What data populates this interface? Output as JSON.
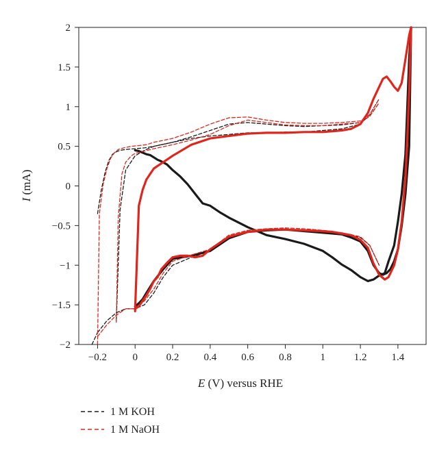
{
  "chart_data": {
    "type": "line",
    "xlabel_italic": "E",
    "xlabel_rest": " (V) versus RHE",
    "ylabel_italic": "I",
    "ylabel_rest": " (mA)",
    "xlim": [
      -0.3,
      1.55
    ],
    "ylim": [
      -2,
      2
    ],
    "xticks": [
      -0.2,
      0,
      0.2,
      0.4,
      0.6,
      0.8,
      1,
      1.2,
      1.4
    ],
    "xtick_labels": [
      "−0.2",
      "0",
      "0.2",
      "0.4",
      "0.6",
      "0.8",
      "1",
      "1.2",
      "1.4"
    ],
    "yticks": [
      -2,
      -1.5,
      -1,
      -0.5,
      0,
      0.5,
      1,
      1.5,
      2
    ],
    "ytick_labels": [
      "−2",
      "−1.5",
      "−1",
      "−0.5",
      "0",
      "0.5",
      "1",
      "1.5",
      "2"
    ],
    "grid": false,
    "legend_position": "bottom-left, below plot",
    "series": [
      {
        "name": "1 M KOH",
        "color": "#1a1a1a",
        "style": "dashed",
        "curves": [
          {
            "weight": "thick",
            "x": [
              0.0,
              0.02,
              0.04,
              0.06,
              0.08,
              0.1,
              0.12,
              0.14,
              0.17,
              0.2,
              0.24,
              0.28,
              0.32,
              0.36,
              0.4,
              0.45,
              0.5,
              0.6,
              0.7,
              0.8,
              0.9,
              1.0,
              1.05,
              1.1,
              1.15,
              1.2,
              1.24,
              1.27,
              1.3,
              1.33,
              1.35,
              1.38,
              1.4,
              1.42,
              1.44,
              1.45,
              1.46,
              1.47
            ],
            "y": [
              0.45,
              0.44,
              0.42,
              0.4,
              0.39,
              0.36,
              0.33,
              0.31,
              0.27,
              0.2,
              0.12,
              0.02,
              -0.1,
              -0.22,
              -0.25,
              -0.33,
              -0.4,
              -0.52,
              -0.62,
              -0.67,
              -0.73,
              -0.82,
              -0.9,
              -0.99,
              -1.06,
              -1.15,
              -1.2,
              -1.18,
              -1.13,
              -1.1,
              -0.95,
              -0.75,
              -0.45,
              -0.1,
              0.4,
              1.0,
              1.6,
              2.0
            ]
          },
          {
            "weight": "thick",
            "x": [
              0.0,
              0.02,
              0.04,
              0.06,
              0.1,
              0.15,
              0.2,
              0.3,
              0.4,
              0.5,
              0.6,
              0.7,
              0.8,
              0.9,
              1.0,
              1.1,
              1.15,
              1.2,
              1.24,
              1.27,
              1.3,
              1.32,
              1.34,
              1.36,
              1.38,
              1.4,
              1.42,
              1.44,
              1.46,
              1.47
            ],
            "y": [
              -1.52,
              -1.48,
              -1.43,
              -1.35,
              -1.2,
              -1.05,
              -0.92,
              -0.88,
              -0.82,
              -0.66,
              -0.58,
              -0.56,
              -0.55,
              -0.57,
              -0.59,
              -0.61,
              -0.65,
              -0.7,
              -0.82,
              -1.0,
              -1.1,
              -1.12,
              -1.1,
              -1.05,
              -0.95,
              -0.8,
              -0.5,
              -0.1,
              0.5,
              2.0
            ]
          },
          {
            "weight": "thin",
            "x": [
              -0.2,
              -0.18,
              -0.16,
              -0.14,
              -0.12,
              -0.1,
              -0.08,
              -0.05,
              0.0,
              0.05,
              0.1,
              0.2,
              0.3,
              0.4,
              0.5,
              0.6,
              0.7,
              0.8,
              0.9,
              1.0,
              1.1,
              1.2,
              1.25,
              1.3
            ],
            "y": [
              -0.35,
              -0.05,
              0.17,
              0.32,
              0.4,
              0.43,
              0.45,
              0.46,
              0.47,
              0.48,
              0.5,
              0.55,
              0.6,
              0.63,
              0.65,
              0.67,
              0.67,
              0.68,
              0.68,
              0.7,
              0.72,
              0.78,
              0.9,
              1.1
            ]
          },
          {
            "weight": "thin",
            "x": [
              -0.1,
              -0.08,
              -0.05,
              0.0,
              0.05,
              0.1,
              0.2,
              0.3,
              0.4,
              0.5,
              0.6,
              0.7,
              0.8,
              0.9,
              1.0,
              1.1,
              1.2,
              1.25,
              1.3
            ],
            "y": [
              -1.7,
              -0.3,
              0.2,
              0.38,
              0.45,
              0.5,
              0.55,
              0.62,
              0.7,
              0.78,
              0.8,
              0.78,
              0.76,
              0.75,
              0.76,
              0.77,
              0.8,
              0.88,
              1.05
            ]
          },
          {
            "weight": "thin",
            "x": [
              -0.2,
              -0.15,
              -0.1,
              -0.05,
              0.0,
              0.05,
              0.1,
              0.15,
              0.2,
              0.3,
              0.4,
              0.5,
              0.6,
              0.7,
              0.8,
              0.9,
              1.0,
              1.1,
              1.2,
              1.25,
              1.3
            ],
            "y": [
              -1.85,
              -1.7,
              -1.6,
              -1.55,
              -1.55,
              -1.5,
              -1.35,
              -1.15,
              -1.0,
              -0.9,
              -0.82,
              -0.65,
              -0.58,
              -0.56,
              -0.55,
              -0.56,
              -0.58,
              -0.6,
              -0.65,
              -0.75,
              -1.0
            ]
          },
          {
            "weight": "thin",
            "x": [
              -0.23,
              -0.21,
              -0.2
            ],
            "y": [
              -2.0,
              -1.9,
              -1.85
            ]
          }
        ]
      },
      {
        "name": "1 M NaOH",
        "color": "#e0261c",
        "style": "dashed",
        "curves": [
          {
            "weight": "thick",
            "x": [
              0.0,
              0.02,
              0.04,
              0.06,
              0.08,
              0.1,
              0.12,
              0.14,
              0.17,
              0.2,
              0.24,
              0.28,
              0.32,
              0.36,
              0.4,
              0.45,
              0.5,
              0.6,
              0.7,
              0.8,
              0.9,
              1.0,
              1.05,
              1.1,
              1.15,
              1.2,
              1.24,
              1.27,
              1.3,
              1.33,
              1.35,
              1.38,
              1.4,
              1.42,
              1.44,
              1.45,
              1.46,
              1.47
            ],
            "y": [
              -1.55,
              -1.52,
              -1.45,
              -1.38,
              -1.3,
              -1.2,
              -1.15,
              -1.05,
              -0.97,
              -0.9,
              -0.88,
              -0.88,
              -0.9,
              -0.88,
              -0.8,
              -0.72,
              -0.64,
              -0.58,
              -0.55,
              -0.55,
              -0.56,
              -0.57,
              -0.58,
              -0.6,
              -0.62,
              -0.68,
              -0.78,
              -0.98,
              -1.12,
              -1.18,
              -1.15,
              -1.0,
              -0.8,
              -0.45,
              0.1,
              0.6,
              1.2,
              2.0
            ]
          },
          {
            "weight": "thick",
            "x": [
              0.0,
              0.02,
              0.04,
              0.06,
              0.08,
              0.1,
              0.15,
              0.2,
              0.3,
              0.4,
              0.5,
              0.6,
              0.7,
              0.8,
              0.9,
              1.0,
              1.1,
              1.15,
              1.2,
              1.24,
              1.27,
              1.3,
              1.32,
              1.34,
              1.36,
              1.38,
              1.4,
              1.42,
              1.44,
              1.46,
              1.47
            ],
            "y": [
              -1.58,
              -0.25,
              -0.05,
              0.08,
              0.15,
              0.22,
              0.3,
              0.38,
              0.52,
              0.6,
              0.63,
              0.66,
              0.67,
              0.67,
              0.68,
              0.68,
              0.7,
              0.72,
              0.78,
              0.92,
              1.1,
              1.25,
              1.35,
              1.38,
              1.32,
              1.25,
              1.2,
              1.3,
              1.6,
              1.9,
              2.0
            ]
          },
          {
            "weight": "thin",
            "x": [
              -0.2,
              -0.19,
              -0.17,
              -0.15,
              -0.13,
              -0.11,
              -0.09,
              -0.06,
              -0.02,
              0.02,
              0.06,
              0.1,
              0.2,
              0.3,
              0.4,
              0.5,
              0.6,
              0.7,
              0.8,
              0.9,
              1.0,
              1.1,
              1.2,
              1.25,
              1.3
            ],
            "y": [
              -2.0,
              -0.35,
              0.02,
              0.22,
              0.35,
              0.42,
              0.46,
              0.48,
              0.5,
              0.51,
              0.52,
              0.55,
              0.6,
              0.68,
              0.78,
              0.86,
              0.87,
              0.83,
              0.8,
              0.79,
              0.79,
              0.8,
              0.82,
              0.9,
              1.1
            ]
          },
          {
            "weight": "thin",
            "x": [
              -0.1,
              -0.09,
              -0.07,
              -0.05,
              -0.02,
              0.0,
              0.05,
              0.1,
              0.2,
              0.3,
              0.4,
              0.5,
              0.6,
              0.7,
              0.8,
              0.9,
              1.0,
              1.1,
              1.2,
              1.25,
              1.3
            ],
            "y": [
              -1.72,
              -0.4,
              0.15,
              0.3,
              0.38,
              0.41,
              0.44,
              0.47,
              0.52,
              0.58,
              0.65,
              0.76,
              0.83,
              0.8,
              0.77,
              0.76,
              0.76,
              0.78,
              0.8,
              0.88,
              1.05
            ]
          },
          {
            "weight": "thin",
            "x": [
              -0.2,
              -0.15,
              -0.1,
              -0.05,
              0.0,
              0.05,
              0.1,
              0.15,
              0.2,
              0.3,
              0.4,
              0.5,
              0.6,
              0.7,
              0.8,
              0.9,
              1.0,
              1.1,
              1.2,
              1.25,
              1.3
            ],
            "y": [
              -1.9,
              -1.75,
              -1.63,
              -1.55,
              -1.55,
              -1.45,
              -1.3,
              -1.1,
              -0.95,
              -0.87,
              -0.8,
              -0.62,
              -0.56,
              -0.54,
              -0.53,
              -0.54,
              -0.56,
              -0.59,
              -0.64,
              -0.75,
              -1.0
            ]
          }
        ]
      }
    ]
  }
}
